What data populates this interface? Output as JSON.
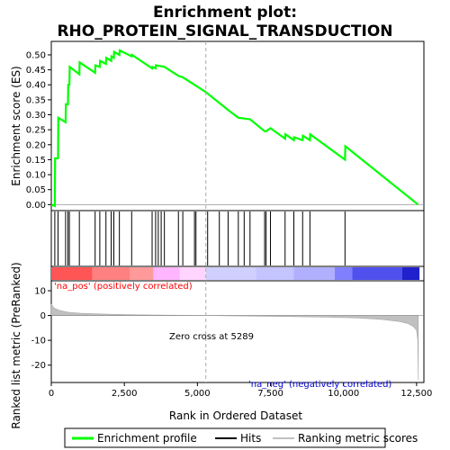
{
  "chart_data": {
    "type": "line",
    "title_line1": "Enrichment plot:",
    "title_line2": "RHO_PROTEIN_SIGNAL_TRANSDUCTION",
    "xlabel": "Rank in Ordered Dataset",
    "ylabel_top": "Enrichment score (ES)",
    "ylabel_bottom": "Ranked list metric (PreRanked)",
    "x_range": [
      0,
      12750
    ],
    "es_ylim": [
      -0.02,
      0.545
    ],
    "metric_ylim": [
      -27,
      14
    ],
    "x_ticks": [
      0,
      2500,
      5000,
      7500,
      10000,
      12500
    ],
    "x_tick_labels": [
      "0",
      "2,500",
      "5,000",
      "7,500",
      "10,000",
      "12,500"
    ],
    "es_ticks": [
      0.0,
      0.05,
      0.1,
      0.15,
      0.2,
      0.25,
      0.3,
      0.35,
      0.4,
      0.45,
      0.5
    ],
    "es_tick_labels": [
      "0.00",
      "0.05",
      "0.10",
      "0.15",
      "0.20",
      "0.25",
      "0.30",
      "0.35",
      "0.40",
      "0.45",
      "0.50"
    ],
    "metric_ticks": [
      10,
      0,
      -10,
      -20
    ],
    "metric_tick_labels": [
      "10",
      "0",
      "-10",
      "-20"
    ],
    "zero_cross": 5289,
    "annotations": {
      "pos": "'na_pos' (positively correlated)",
      "neg": "'na_neg' (negatively correlated)",
      "zero": "Zero cross at 5289"
    },
    "legend": {
      "enrichment": "Enrichment profile",
      "hits": "Hits",
      "metric": "Ranking metric scores"
    },
    "colors": {
      "es_line": "#00ff00",
      "hits": "#000000",
      "metric": "#c0c0c0",
      "pos_text": "#ff0000",
      "neg_text": "#0000cc"
    },
    "es_profile": [
      [
        0,
        0.0
      ],
      [
        120,
        -0.005
      ],
      [
        130,
        0.155
      ],
      [
        230,
        0.155
      ],
      [
        240,
        0.29
      ],
      [
        490,
        0.275
      ],
      [
        500,
        0.335
      ],
      [
        570,
        0.335
      ],
      [
        580,
        0.4
      ],
      [
        620,
        0.4
      ],
      [
        630,
        0.46
      ],
      [
        960,
        0.435
      ],
      [
        970,
        0.475
      ],
      [
        1500,
        0.44
      ],
      [
        1510,
        0.465
      ],
      [
        1660,
        0.46
      ],
      [
        1670,
        0.48
      ],
      [
        1870,
        0.47
      ],
      [
        1880,
        0.49
      ],
      [
        2050,
        0.48
      ],
      [
        2060,
        0.495
      ],
      [
        2140,
        0.49
      ],
      [
        2150,
        0.51
      ],
      [
        2330,
        0.5
      ],
      [
        2340,
        0.515
      ],
      [
        2750,
        0.495
      ],
      [
        2760,
        0.5
      ],
      [
        3450,
        0.455
      ],
      [
        3460,
        0.46
      ],
      [
        3570,
        0.455
      ],
      [
        3580,
        0.465
      ],
      [
        3870,
        0.46
      ],
      [
        4350,
        0.43
      ],
      [
        4500,
        0.425
      ],
      [
        4900,
        0.4
      ],
      [
        5300,
        0.375
      ],
      [
        6000,
        0.32
      ],
      [
        6400,
        0.29
      ],
      [
        6800,
        0.285
      ],
      [
        7300,
        0.245
      ],
      [
        7350,
        0.245
      ],
      [
        7500,
        0.255
      ],
      [
        8000,
        0.22
      ],
      [
        8010,
        0.235
      ],
      [
        8300,
        0.215
      ],
      [
        8310,
        0.225
      ],
      [
        8600,
        0.215
      ],
      [
        8610,
        0.23
      ],
      [
        8850,
        0.215
      ],
      [
        8860,
        0.235
      ],
      [
        10050,
        0.15
      ],
      [
        10060,
        0.195
      ],
      [
        12550,
        0.0
      ]
    ],
    "hits": [
      120,
      230,
      490,
      570,
      620,
      960,
      1500,
      1660,
      1870,
      2050,
      2140,
      2330,
      2750,
      3450,
      3570,
      3660,
      3760,
      3870,
      4350,
      4500,
      4900,
      4950,
      5350,
      5750,
      6050,
      6400,
      6600,
      6800,
      7300,
      7350,
      7500,
      8000,
      8300,
      8600,
      8850,
      10050
    ],
    "metric_curve": [
      [
        0,
        4.5
      ],
      [
        100,
        3.0
      ],
      [
        300,
        2.0
      ],
      [
        600,
        1.3
      ],
      [
        1000,
        0.9
      ],
      [
        2000,
        0.5
      ],
      [
        3000,
        0.3
      ],
      [
        4000,
        0.15
      ],
      [
        5289,
        0.0
      ],
      [
        6500,
        -0.2
      ],
      [
        8000,
        -0.4
      ],
      [
        9500,
        -0.7
      ],
      [
        10500,
        -1.0
      ],
      [
        11300,
        -1.6
      ],
      [
        11900,
        -2.4
      ],
      [
        12200,
        -3.2
      ],
      [
        12400,
        -4.5
      ],
      [
        12500,
        -6.0
      ],
      [
        12540,
        -10.0
      ],
      [
        12560,
        -26.0
      ]
    ],
    "ranking_bar_segments": [
      [
        0,
        1400,
        "#ff5555"
      ],
      [
        1400,
        2700,
        "#ff8080"
      ],
      [
        2700,
        3500,
        "#ff9a9a"
      ],
      [
        3500,
        4400,
        "#ffb5ff"
      ],
      [
        4400,
        5300,
        "#ffd5ff"
      ],
      [
        5300,
        7000,
        "#d0d0ff"
      ],
      [
        7000,
        8300,
        "#c4c4ff"
      ],
      [
        8300,
        9700,
        "#b0b0ff"
      ],
      [
        9700,
        10300,
        "#8080ff"
      ],
      [
        10300,
        12000,
        "#5050ee"
      ],
      [
        12000,
        12600,
        "#2020cc"
      ]
    ]
  }
}
